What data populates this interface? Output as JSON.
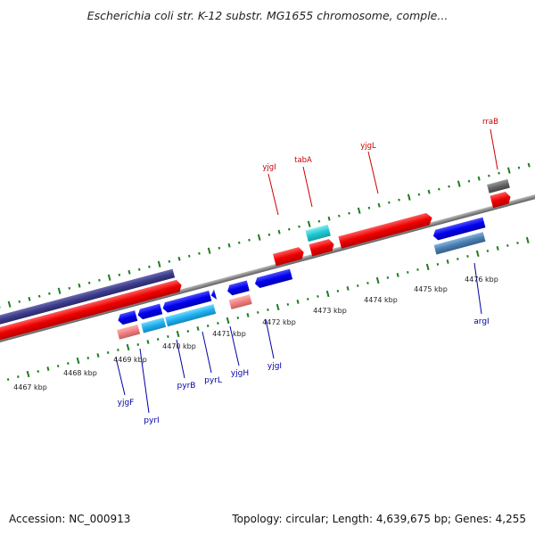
{
  "title": "Escherichia coli str. K-12 substr. MG1655 chromosome, comple...",
  "footer": {
    "accession": "Accession: NC_000913",
    "summary": "Topology: circular; Length: 4,639,675 bp; Genes: 4,255"
  },
  "colors": {
    "backbone": "#8a8a8a",
    "tick": "#1e7d1e",
    "gene_red": "#ee0000",
    "gene_blue": "#0000ee",
    "gene_cyan": "#22c8d0",
    "gene_skyblue": "#1fb0ee",
    "gene_pink": "#f08080",
    "gene_steelblue": "#4a7fb5",
    "gene_navy": "#3c3c8c",
    "gene_gray": "#666666",
    "label_top": "#cc0000",
    "label_bottom": "#0000aa"
  },
  "scale_labels": [
    "4467 kbp",
    "4468 kbp",
    "4469 kbp",
    "4470 kbp",
    "4471 kbp",
    "4472 kbp",
    "4473 kbp",
    "4474 kbp",
    "4475 kbp",
    "4476 kbp"
  ],
  "top_gene_labels": [
    "yjgI",
    "tabA",
    "yjgL",
    "rraB"
  ],
  "bottom_gene_labels": [
    "yjgF",
    "pyrI",
    "pyrB",
    "pyrL",
    "yjgH",
    "yjgI",
    "argI"
  ]
}
